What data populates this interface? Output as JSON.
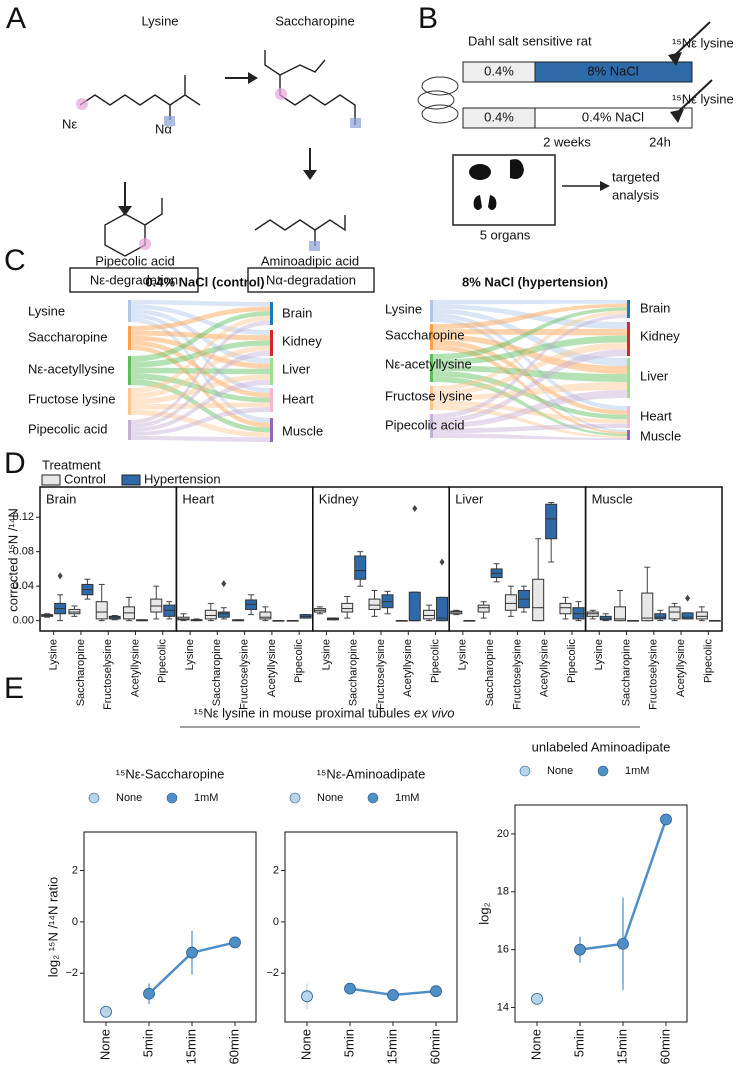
{
  "panel_letters": [
    "A",
    "B",
    "C",
    "D",
    "E"
  ],
  "panel_a": {
    "lysine": "Lysine",
    "n_epsilon": "Nε",
    "n_alpha": "Nα",
    "saccharopine": "Saccharopine",
    "pipecolic": "Pipecolic acid",
    "ne_degradation": "Nε-degradation",
    "aminoadipic": "Aminoadipic acid",
    "na_degradation": "Nα-degradation"
  },
  "panel_b": {
    "title": "Dahl salt sensitive rat",
    "label_top": "¹⁵Nε lysine",
    "label_bottom": "¹⁵Nε lysine",
    "bar1_start": "0.4%",
    "bar1_end": "8% NaCl",
    "bar2_start": "0.4%",
    "bar2_end": "0.4% NaCl",
    "duration": "2 weeks",
    "final": "24h",
    "organs": "5 organs",
    "target_1": "targeted",
    "target_2": "analysis"
  },
  "panel_c": [
    {
      "title": "0.4% NaCl (control)",
      "sources": [
        "Lysine",
        "Saccharopine",
        "Nε-acetyllysine",
        "Fructose lysine",
        "Pipecolic acid"
      ],
      "targets": [
        "Brain",
        "Kidney",
        "Liver",
        "Heart",
        "Muscle"
      ]
    },
    {
      "title": "8% NaCl (hypertension)",
      "sources": [
        "Lysine",
        "Saccharopine",
        "Nε-acetyllysine",
        "Fructose lysine",
        "Pipecolic acid"
      ],
      "targets": [
        "Brain",
        "Kidney",
        "Liver",
        "Heart",
        "Muscle"
      ]
    }
  ],
  "panel_e": {
    "title": "¹⁵Nε lysine in mouse proximal tubules",
    "title_italic": "ex vivo"
  },
  "chart_data": [
    {
      "type": "box",
      "legend_title": "Treatment",
      "ylabel": "corrected ¹⁵N /¹⁴N",
      "categories": [
        "Lysine",
        "Saccharopine",
        "Fructoselysine",
        "Acetyllysine",
        "Pipecolic"
      ],
      "ylim": [
        -0.012,
        0.155
      ],
      "yticks": [
        {
          "value": 0,
          "label": "0.00"
        },
        0.04,
        0.08,
        0.12
      ],
      "series": [
        {
          "name": "Control",
          "color": "#e8e8e8"
        },
        {
          "name": "Hypertension",
          "color": "#2f6aa8"
        }
      ],
      "facets": [
        {
          "title": "Brain",
          "boxes": [
            [
              {
                "whislo": 0.004,
                "q1": 0.005,
                "med": 0.006,
                "q3": 0.007,
                "whishi": 0.008
              },
              {
                "whislo": 0,
                "q1": 0.008,
                "med": 0.014,
                "q3": 0.02,
                "whishi": 0.03,
                "fliers": [
                  0.052
                ]
              }
            ],
            [
              {
                "whislo": 0.005,
                "q1": 0.008,
                "med": 0.01,
                "q3": 0.013,
                "whishi": 0.017
              },
              {
                "whislo": 0.025,
                "q1": 0.03,
                "med": 0.036,
                "q3": 0.042,
                "whishi": 0.048
              }
            ],
            [
              {
                "whislo": 0,
                "q1": 0.002,
                "med": 0.01,
                "q3": 0.022,
                "whishi": 0.042
              },
              {
                "whislo": 0.001,
                "q1": 0.002,
                "med": 0.004,
                "q3": 0.005,
                "whishi": 0.006
              }
            ],
            [
              {
                "whislo": 0,
                "q1": 0.002,
                "med": 0.009,
                "q3": 0.016,
                "whishi": 0.027
              },
              {
                "whislo": 0,
                "q1": 0,
                "med": 0,
                "q3": 0.001,
                "whishi": 0.001
              }
            ],
            [
              {
                "whislo": 0.002,
                "q1": 0.01,
                "med": 0.017,
                "q3": 0.025,
                "whishi": 0.04
              },
              {
                "whislo": 0.002,
                "q1": 0.005,
                "med": 0.012,
                "q3": 0.018,
                "whishi": 0.022
              }
            ]
          ]
        },
        {
          "title": "Heart",
          "boxes": [
            [
              {
                "whislo": 0,
                "q1": 0.001,
                "med": 0.002,
                "q3": 0.004,
                "whishi": 0.008
              },
              {
                "whislo": 0,
                "q1": 0,
                "med": 0.001,
                "q3": 0.001,
                "whishi": 0.002
              }
            ],
            [
              {
                "whislo": 0,
                "q1": 0.002,
                "med": 0.006,
                "q3": 0.012,
                "whishi": 0.02
              },
              {
                "whislo": 0.002,
                "q1": 0.004,
                "med": 0.008,
                "q3": 0.01,
                "whishi": 0.015,
                "fliers": [
                  0.043
                ]
              }
            ],
            [
              {
                "whislo": 0,
                "q1": 0,
                "med": 0,
                "q3": 0.001,
                "whishi": 0.001
              },
              {
                "whislo": 0.007,
                "q1": 0.013,
                "med": 0.019,
                "q3": 0.024,
                "whishi": 0.03
              }
            ],
            [
              {
                "whislo": 0,
                "q1": 0.002,
                "med": 0.004,
                "q3": 0.01,
                "whishi": 0.016
              },
              {
                "whislo": 0,
                "q1": 0,
                "med": 0,
                "q3": 0,
                "whishi": 0
              }
            ],
            [
              {
                "whislo": 0,
                "q1": 0,
                "med": 0,
                "q3": 0,
                "whishi": 0
              },
              {
                "whislo": 0.003,
                "q1": 0.003,
                "med": 0.005,
                "q3": 0.007,
                "whishi": 0.007
              }
            ]
          ]
        },
        {
          "title": "Kidney",
          "boxes": [
            [
              {
                "whislo": 0.008,
                "q1": 0.01,
                "med": 0.012,
                "q3": 0.014,
                "whishi": 0.016
              },
              {
                "whislo": 0.001,
                "q1": 0.001,
                "med": 0.002,
                "q3": 0.003,
                "whishi": 0.003
              }
            ],
            [
              {
                "whislo": 0.003,
                "q1": 0.01,
                "med": 0.014,
                "q3": 0.02,
                "whishi": 0.028
              },
              {
                "whislo": 0.04,
                "q1": 0.048,
                "med": 0.058,
                "q3": 0.075,
                "whishi": 0.08
              }
            ],
            [
              {
                "whislo": 0.005,
                "q1": 0.013,
                "med": 0.018,
                "q3": 0.025,
                "whishi": 0.035
              },
              {
                "whislo": 0.008,
                "q1": 0.015,
                "med": 0.022,
                "q3": 0.03,
                "whishi": 0.034
              }
            ],
            [
              {
                "whislo": 0,
                "q1": 0,
                "med": 0,
                "q3": 0,
                "whishi": 0
              },
              {
                "whislo": 0,
                "q1": 0,
                "med": 0,
                "q3": 0.033,
                "whishi": 0.033,
                "fliers": [
                  0.13
                ]
              }
            ],
            [
              {
                "whislo": 0,
                "q1": 0.002,
                "med": 0.006,
                "q3": 0.012,
                "whishi": 0.018
              },
              {
                "whislo": 0,
                "q1": 0,
                "med": 0.003,
                "q3": 0.027,
                "whishi": 0.027,
                "fliers": [
                  0.068
                ]
              }
            ]
          ]
        },
        {
          "title": "Liver",
          "boxes": [
            [
              {
                "whislo": 0.007,
                "q1": 0.008,
                "med": 0.01,
                "q3": 0.011,
                "whishi": 0.012
              },
              {
                "whislo": 0,
                "q1": 0,
                "med": 0,
                "q3": 0,
                "whishi": 0
              }
            ],
            [
              {
                "whislo": 0.003,
                "q1": 0.01,
                "med": 0.015,
                "q3": 0.018,
                "whishi": 0.022
              },
              {
                "whislo": 0.045,
                "q1": 0.05,
                "med": 0.055,
                "q3": 0.06,
                "whishi": 0.066
              }
            ],
            [
              {
                "whislo": 0.005,
                "q1": 0.012,
                "med": 0.02,
                "q3": 0.03,
                "whishi": 0.04
              },
              {
                "whislo": 0.01,
                "q1": 0.015,
                "med": 0.025,
                "q3": 0.035,
                "whishi": 0.04
              }
            ],
            [
              {
                "whislo": 0,
                "q1": 0,
                "med": 0.015,
                "q3": 0.048,
                "whishi": 0.095
              },
              {
                "whislo": 0.068,
                "q1": 0.095,
                "med": 0.118,
                "q3": 0.135,
                "whishi": 0.137
              }
            ],
            [
              {
                "whislo": 0.002,
                "q1": 0.008,
                "med": 0.015,
                "q3": 0.02,
                "whishi": 0.027
              },
              {
                "whislo": 0,
                "q1": 0.002,
                "med": 0.008,
                "q3": 0.015,
                "whishi": 0.022
              }
            ]
          ]
        },
        {
          "title": "Muscle",
          "boxes": [
            [
              {
                "whislo": 0.002,
                "q1": 0.005,
                "med": 0.008,
                "q3": 0.01,
                "whishi": 0.012
              },
              {
                "whislo": 0,
                "q1": 0.001,
                "med": 0.002,
                "q3": 0.005,
                "whishi": 0.008
              }
            ],
            [
              {
                "whislo": 0,
                "q1": 0,
                "med": 0.002,
                "q3": 0.016,
                "whishi": 0.035
              },
              {
                "whislo": 0,
                "q1": 0,
                "med": 0,
                "q3": 0,
                "whishi": 0
              }
            ],
            [
              {
                "whislo": 0,
                "q1": 0,
                "med": 0.003,
                "q3": 0.032,
                "whishi": 0.062
              },
              {
                "whislo": 0,
                "q1": 0.002,
                "med": 0.004,
                "q3": 0.008,
                "whishi": 0.012
              }
            ],
            [
              {
                "whislo": 0,
                "q1": 0.002,
                "med": 0.01,
                "q3": 0.016,
                "whishi": 0.02
              },
              {
                "whislo": 0.002,
                "q1": 0.002,
                "med": 0.004,
                "q3": 0.009,
                "whishi": 0.009,
                "fliers": [
                  0.026
                ]
              }
            ],
            [
              {
                "whislo": 0,
                "q1": 0.002,
                "med": 0.005,
                "q3": 0.01,
                "whishi": 0.016
              },
              {
                "whislo": 0,
                "q1": 0,
                "med": 0,
                "q3": 0,
                "whishi": 0
              }
            ]
          ]
        }
      ]
    },
    {
      "type": "line",
      "title": "¹⁵Nε-Saccharopine",
      "ylabel": "log₂ ¹⁵N /¹⁴N ratio",
      "categories": [
        "None",
        "5min",
        "15min",
        "60min"
      ],
      "ylim": [
        -3.9,
        3.5
      ],
      "yticks": [
        {
          "value": -2,
          "label": "−2"
        },
        0,
        2
      ],
      "series": [
        {
          "name": "None",
          "color": "#b7d5ea",
          "values": [
            -3.5,
            null,
            null,
            null
          ]
        },
        {
          "name": "1mM",
          "color": "#4f8fc6",
          "values": [
            null,
            -2.8,
            -1.2,
            -0.8
          ],
          "errors": [
            null,
            0.4,
            0.85,
            0.1
          ]
        }
      ]
    },
    {
      "type": "line",
      "title": "¹⁵Nε-Aminoadipate",
      "categories": [
        "None",
        "5min",
        "15min",
        "60min"
      ],
      "ylim": [
        -3.9,
        3.5
      ],
      "yticks": [
        {
          "value": -2,
          "label": "−2"
        },
        0,
        2
      ],
      "series": [
        {
          "name": "None",
          "color": "#b7d5ea",
          "values": [
            -2.9,
            null,
            null,
            null
          ],
          "errors": [
            0.5,
            null,
            null,
            null
          ]
        },
        {
          "name": "1mM",
          "color": "#4f8fc6",
          "values": [
            null,
            -2.6,
            -2.85,
            -2.7
          ],
          "errors": [
            null,
            0.05,
            0.1,
            0.05
          ]
        }
      ]
    },
    {
      "type": "line",
      "title": "unlabeled Aminoadipate",
      "ylabel": "log₂",
      "categories": [
        "None",
        "5min",
        "15min",
        "60min"
      ],
      "ylim": [
        13.5,
        21
      ],
      "yticks": [
        14,
        16,
        18,
        20
      ],
      "series": [
        {
          "name": "None",
          "color": "#b7d5ea",
          "values": [
            14.3,
            null,
            null,
            null
          ]
        },
        {
          "name": "1mM",
          "color": "#4f8fc6",
          "values": [
            null,
            16.0,
            16.2,
            20.5
          ],
          "errors": [
            null,
            0.45,
            1.6,
            null
          ]
        }
      ]
    }
  ]
}
